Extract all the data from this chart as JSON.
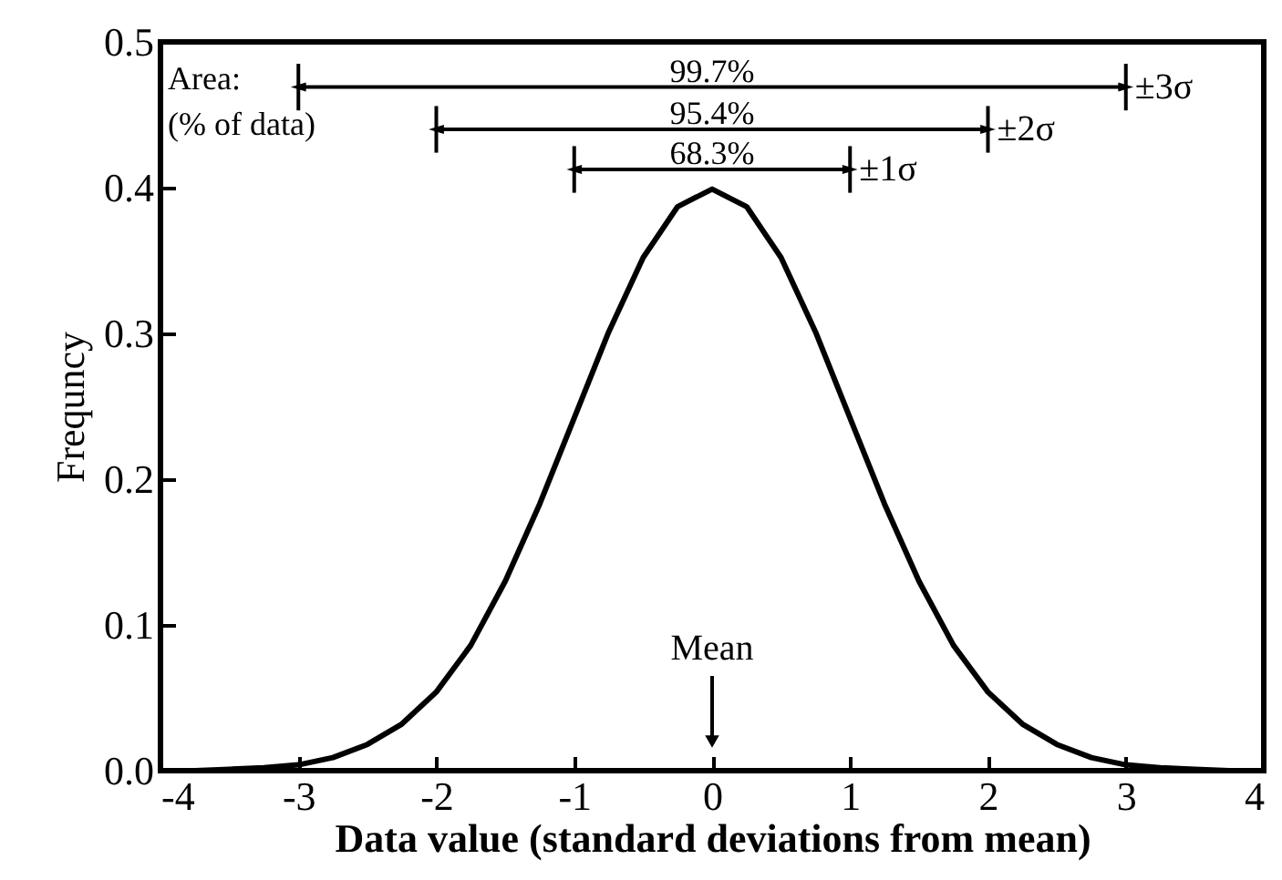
{
  "chart_data": {
    "type": "line",
    "xlabel": "Data value (standard deviations from mean)",
    "ylabel": "Frequncy",
    "x": [
      -4,
      -3.75,
      -3.5,
      -3.25,
      -3,
      -2.75,
      -2.5,
      -2.25,
      -2,
      -1.75,
      -1.5,
      -1.25,
      -1,
      -0.75,
      -0.5,
      -0.25,
      0,
      0.25,
      0.5,
      0.75,
      1,
      1.25,
      1.5,
      1.75,
      2,
      2.25,
      2.5,
      2.75,
      3,
      3.25,
      3.5,
      3.75,
      4
    ],
    "series": [
      {
        "color": "#000000",
        "values": [
          0.0,
          0.0,
          0.001,
          0.002,
          0.004,
          0.009,
          0.018,
          0.032,
          0.054,
          0.086,
          0.13,
          0.183,
          0.242,
          0.301,
          0.352,
          0.387,
          0.399,
          0.387,
          0.352,
          0.301,
          0.242,
          0.183,
          0.13,
          0.086,
          0.054,
          0.032,
          0.018,
          0.009,
          0.004,
          0.002,
          0.001,
          0.0,
          0.0
        ]
      }
    ],
    "xlim": [
      -4,
      4
    ],
    "xticks": [
      -4,
      -3,
      -2,
      -1,
      0,
      1,
      2,
      3,
      4
    ],
    "ylim": [
      0,
      0.5
    ],
    "yticks": [
      {
        "value": 0,
        "label": "0.0"
      },
      0.1,
      0.2,
      0.3,
      0.4,
      0.5
    ],
    "grid": false,
    "legend": false,
    "marker": "none",
    "line_style": "solid",
    "ref_lines": [
      {
        "axis": "x",
        "value": 0,
        "label": "Mean"
      }
    ],
    "annotations": [
      "99.7%",
      "95.4%",
      "68.3%",
      {
        "text": "±3σ",
        "x": 3,
        "y": 0.469
      },
      {
        "text": "±2σ",
        "x": 2,
        "y": 0.44
      },
      {
        "text": "±1σ",
        "x": 1,
        "y": 0.4125
      },
      "Area:",
      "(% of data)"
    ]
  }
}
